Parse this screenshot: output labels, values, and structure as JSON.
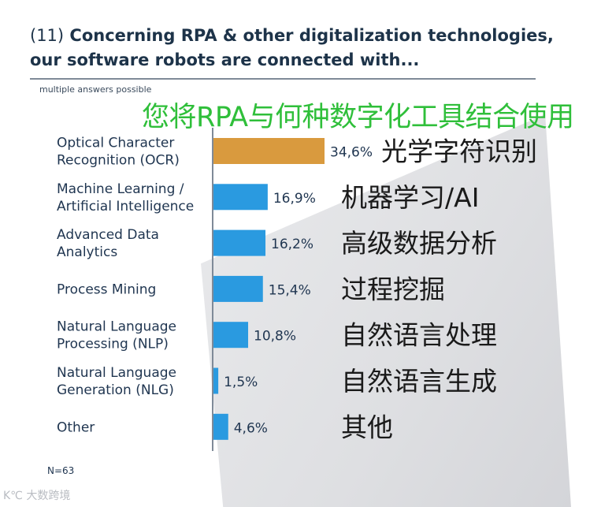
{
  "title_number": "(11)",
  "title": "Concerning RPA & other digitalization technologies, our software robots are connected with...",
  "note": "multiple answers possible",
  "subtitle_cn": "您将RPA与何种数字化工具结合使用",
  "n_label": "N=63",
  "watermark": "K℃ 大数跨境",
  "colors": {
    "highlight": "#d99a3e",
    "bar": "#2a9ae0",
    "axis": "#7f8a98"
  },
  "chart_data": {
    "type": "bar",
    "orientation": "horizontal",
    "categories": [
      [
        "Optical Character",
        "Recognition (OCR)"
      ],
      [
        "Machine Learning /",
        "Artificial Intelligence"
      ],
      [
        "Advanced Data",
        "Analytics"
      ],
      [
        "Process Mining"
      ],
      [
        "Natural Language",
        "Processing (NLP)"
      ],
      [
        "Natural Language",
        "Generation (NLG)"
      ],
      [
        "Other"
      ]
    ],
    "categories_cn": [
      "光学字符识别",
      "机器学习/AI",
      "高级数据分析",
      "过程挖掘",
      "自然语言处理",
      "自然语言生成",
      "其他"
    ],
    "values": [
      34.6,
      16.9,
      16.2,
      15.4,
      10.8,
      1.5,
      4.6
    ],
    "value_labels": [
      "34,6%",
      "16,9%",
      "16,2%",
      "15,4%",
      "10,8%",
      "1,5%",
      "4,6%"
    ],
    "highlight_index": 0,
    "unit": "%",
    "xlim": [
      0,
      34.6
    ]
  }
}
